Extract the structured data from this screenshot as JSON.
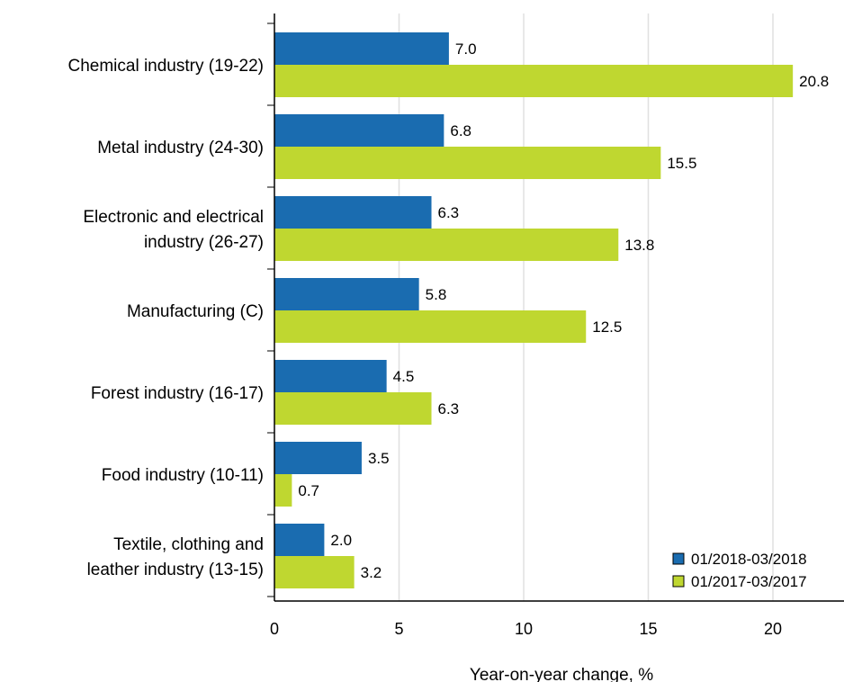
{
  "chart_data": {
    "type": "bar",
    "orientation": "horizontal",
    "title": "",
    "xlabel": "Year-on-year change, %",
    "ylabel": "",
    "xlim": [
      0,
      22.5
    ],
    "xticks": [
      0,
      5,
      10,
      15,
      20
    ],
    "grid": "vertical",
    "legend_position": "bottom-right",
    "categories": [
      [
        "Chemical industry (19-22)"
      ],
      [
        "Metal industry (24-30)"
      ],
      [
        "Electronic and electrical",
        "industry (26-27)"
      ],
      [
        "Manufacturing (C)"
      ],
      [
        "Forest industry (16-17)"
      ],
      [
        "Food industry (10-11)"
      ],
      [
        "Textile, clothing and",
        "leather industry (13-15)"
      ]
    ],
    "series": [
      {
        "name": "01/2018-03/2018",
        "color": "#1a6cb0",
        "values": [
          7.0,
          6.8,
          6.3,
          5.8,
          4.5,
          3.5,
          2.0
        ],
        "labels": [
          "7.0",
          "6.8",
          "6.3",
          "5.8",
          "4.5",
          "3.5",
          "2.0"
        ]
      },
      {
        "name": "01/2017-03/2017",
        "color": "#bfd730",
        "values": [
          20.8,
          15.5,
          13.8,
          12.5,
          6.3,
          0.7,
          3.2
        ],
        "labels": [
          "20.8",
          "15.5",
          "13.8",
          "12.5",
          "6.3",
          "0.7",
          "3.2"
        ]
      }
    ]
  }
}
